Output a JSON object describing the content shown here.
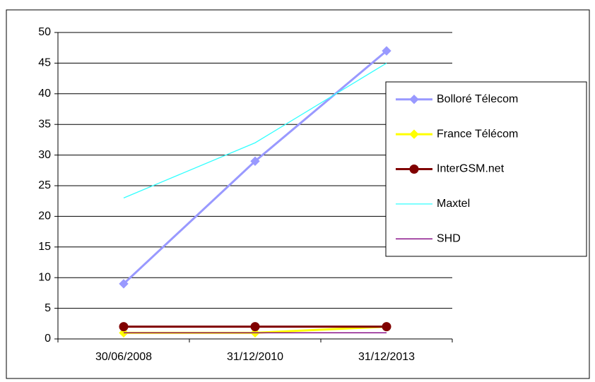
{
  "chart_data": {
    "type": "line",
    "categories": [
      "30/06/2008",
      "31/12/2010",
      "31/12/2013"
    ],
    "series": [
      {
        "name": "Bolloré Télecom",
        "color": "#9999ff",
        "marker": "diamond",
        "values": [
          9,
          29,
          47
        ]
      },
      {
        "name": "France Télécom",
        "color": "#ffff00",
        "marker": "diamond",
        "values": [
          1,
          1,
          2
        ]
      },
      {
        "name": "InterGSM.net",
        "color": "#800000",
        "marker": "circle",
        "values": [
          2,
          2,
          2
        ]
      },
      {
        "name": "Maxtel",
        "color": "#33ffff",
        "marker": null,
        "values": [
          23,
          32,
          45
        ]
      },
      {
        "name": "SHD",
        "color": "#800080",
        "marker": null,
        "values": [
          1,
          1,
          1
        ]
      }
    ],
    "ylim": [
      0,
      50
    ],
    "yticks": [
      0,
      5,
      10,
      15,
      20,
      25,
      30,
      35,
      40,
      45,
      50
    ],
    "grid": true,
    "legend": "right"
  }
}
